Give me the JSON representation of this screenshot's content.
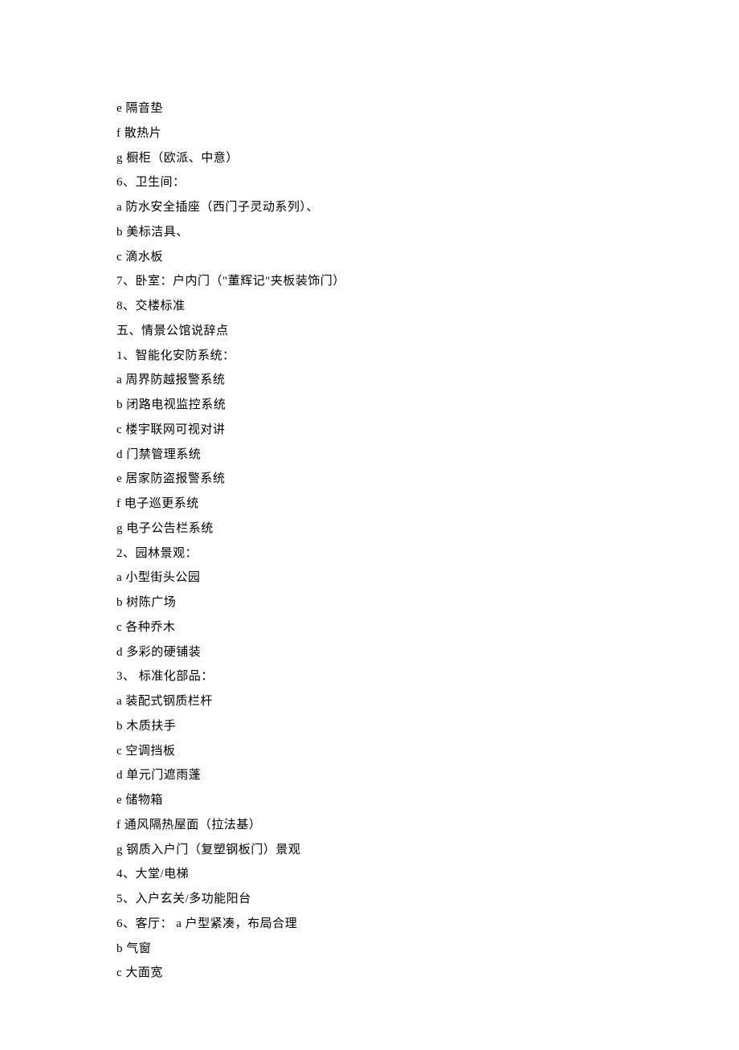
{
  "document": {
    "background_color": "#ffffff",
    "text_color": "#000000",
    "font_size": 15,
    "line_height": 2.05,
    "lines": [
      "e 隔音垫",
      "f 散热片",
      "g 橱柜（欧派、中意）",
      "6、卫生间：",
      "a 防水安全插座（西门子灵动系列）、",
      "b 美标洁具、",
      "c 滴水板",
      "7、卧室：户内门（\"董辉记\"夹板装饰门）",
      "8、交楼标准",
      "五、情景公馆说辞点",
      "1、智能化安防系统：",
      "a 周界防越报警系统",
      "b 闭路电视监控系统",
      "c 楼宇联网可视对讲",
      "d 门禁管理系统",
      "e 居家防盗报警系统",
      "f 电子巡更系统",
      "g 电子公告栏系统",
      "2、园林景观：",
      "a 小型街头公园",
      "b 树陈广场",
      "c 各种乔木",
      "d 多彩的硬铺装",
      "3、 标准化部品：",
      "a 装配式钢质栏杆",
      "b 木质扶手",
      "c 空调挡板",
      "d 单元门遮雨蓬",
      "e 储物箱",
      "f 通风隔热屋面（拉法基）",
      "g 钢质入户门（复塑钢板门）景观",
      "4、大堂/电梯",
      "5、入户玄关/多功能阳台",
      "6、客厅：  a 户型紧凑，布局合理",
      "b 气窗",
      "c 大面宽"
    ]
  }
}
